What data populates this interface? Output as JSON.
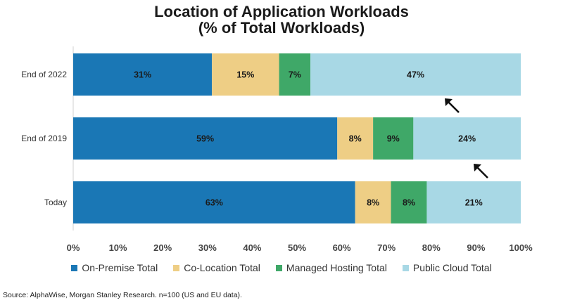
{
  "chart_data": {
    "type": "bar",
    "orientation": "horizontal",
    "stacked": true,
    "title": "Location of Application Workloads",
    "subtitle": "(% of Total Workloads)",
    "categories": [
      "End of 2022",
      "End of 2019",
      "Today"
    ],
    "series": [
      {
        "name": "On-Premise Total",
        "color": "#1a77b5",
        "values": [
          31,
          59,
          63
        ],
        "labels": [
          "31%",
          "59%",
          "63%"
        ]
      },
      {
        "name": "Co-Location Total",
        "color": "#eece85",
        "values": [
          15,
          8,
          8
        ],
        "labels": [
          "15%",
          "8%",
          "8%"
        ]
      },
      {
        "name": "Managed Hosting Total",
        "color": "#3fa868",
        "values": [
          7,
          9,
          8
        ],
        "labels": [
          "7%",
          "9%",
          "8%"
        ]
      },
      {
        "name": "Public Cloud Total",
        "color": "#a8d8e5",
        "values": [
          47,
          24,
          21
        ],
        "labels": [
          "47%",
          "24%",
          "21%"
        ]
      }
    ],
    "xlim": [
      0,
      100
    ],
    "xticks": [
      "0%",
      "10%",
      "20%",
      "30%",
      "40%",
      "50%",
      "60%",
      "70%",
      "80%",
      "90%",
      "100%"
    ],
    "grid": false,
    "legend_position": "bottom",
    "annotations": [
      {
        "type": "arrow",
        "category": "End of 2022",
        "direction": "up-left"
      },
      {
        "type": "arrow",
        "category": "End of 2019",
        "direction": "up-left"
      }
    ]
  },
  "source": "Source: AlphaWise, Morgan Stanley Research. n=100 (US and EU data)."
}
